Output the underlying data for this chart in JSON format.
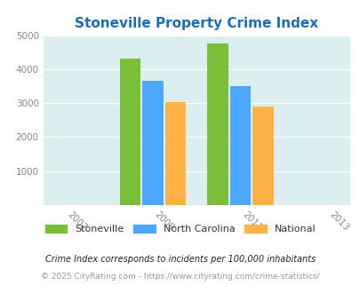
{
  "title": "Stoneville Property Crime Index",
  "title_color": "#1a6fba",
  "years": [
    2009,
    2011
  ],
  "x_ticks": [
    2007,
    2009,
    2011,
    2013
  ],
  "stoneville": [
    4320,
    4760
  ],
  "north_carolina": [
    3650,
    3500
  ],
  "national": [
    3040,
    2900
  ],
  "bar_colors": {
    "stoneville": "#7abf3a",
    "north_carolina": "#4da6ff",
    "national": "#ffb347"
  },
  "ylim": [
    0,
    5000
  ],
  "yticks": [
    0,
    1000,
    2000,
    3000,
    4000,
    5000
  ],
  "xlim": [
    2006.5,
    2013.5
  ],
  "bar_width": 0.52,
  "background_color": "#dceef0",
  "legend_labels": [
    "Stoneville",
    "North Carolina",
    "National"
  ],
  "footnote1": "Crime Index corresponds to incidents per 100,000 inhabitants",
  "footnote2": "© 2025 CityRating.com - https://www.cityrating.com/crime-statistics/",
  "footnote1_color": "#222222",
  "footnote2_color": "#999999"
}
